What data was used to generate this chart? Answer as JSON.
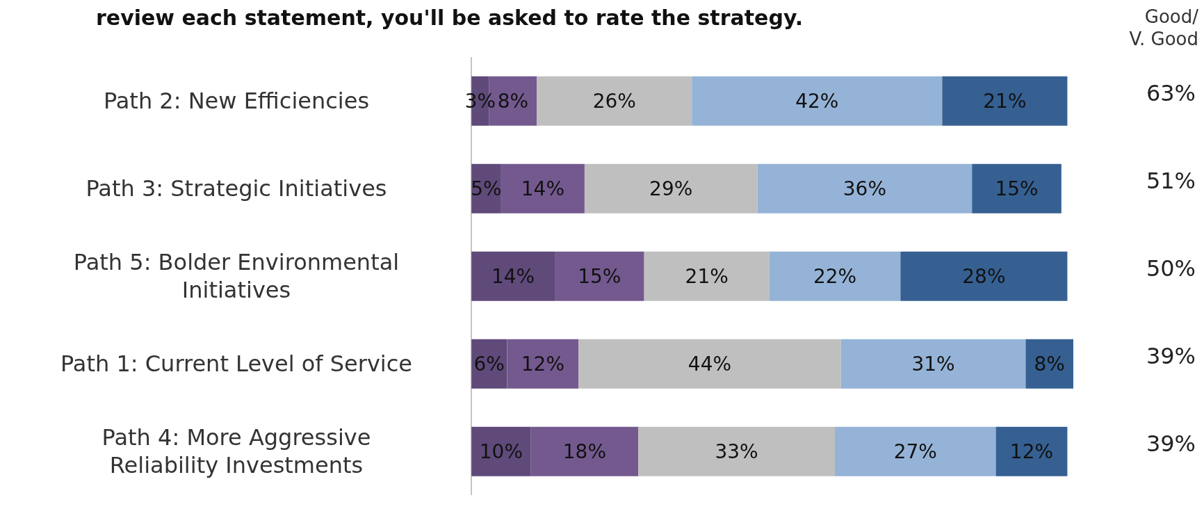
{
  "chart_data": {
    "type": "bar",
    "orientation": "horizontal",
    "stacked": true,
    "title": "review each statement, you'll be asked to rate the strategy.",
    "categories": [
      "Path 2: New Efficiencies",
      "Path 3: Strategic Initiatives",
      "Path 5: Bolder Environmental Initiatives",
      "Path 1: Current Level of Service",
      "Path 4: More Aggressive Reliability Investments"
    ],
    "series": [
      {
        "color": "#5f4a7a",
        "values": [
          3,
          5,
          14,
          6,
          10
        ],
        "value_labels": [
          "3%",
          "5%",
          "14%",
          "6%",
          "10%"
        ]
      },
      {
        "color": "#74598f",
        "values": [
          8,
          14,
          15,
          12,
          18
        ],
        "value_labels": [
          "8%",
          "14%",
          "15%",
          "12%",
          "18%"
        ]
      },
      {
        "color": "#bfbfbf",
        "values": [
          26,
          29,
          21,
          44,
          33
        ],
        "value_labels": [
          "26%",
          "29%",
          "21%",
          "44%",
          "33%"
        ]
      },
      {
        "color": "#95b3d7",
        "values": [
          42,
          36,
          22,
          31,
          27
        ],
        "value_labels": [
          "42%",
          "36%",
          "22%",
          "31%",
          "27%"
        ]
      },
      {
        "color": "#366092",
        "values": [
          21,
          15,
          28,
          8,
          12
        ],
        "value_labels": [
          "21%",
          "15%",
          "28%",
          "8%",
          "12%"
        ]
      }
    ],
    "tick_labels": "y",
    "legend": false,
    "annotations": [
      "Good/\nV. Good",
      "63%",
      "51%",
      "50%",
      "39%",
      "39%"
    ]
  }
}
